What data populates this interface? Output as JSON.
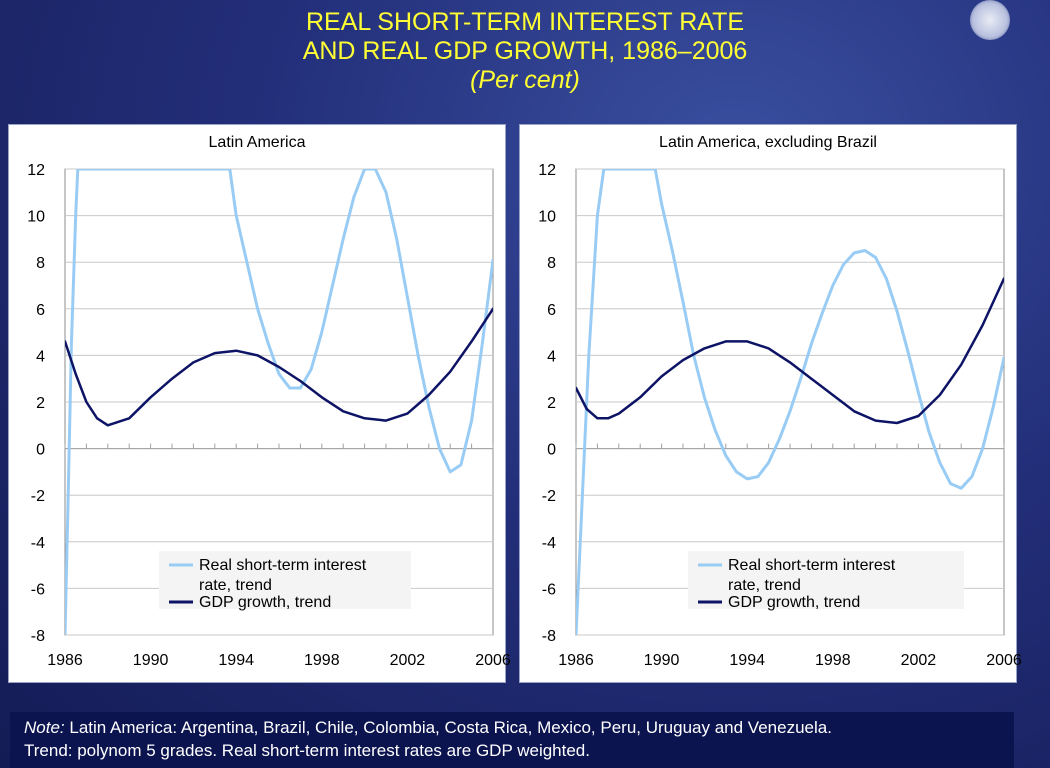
{
  "header": {
    "title_line1": "REAL SHORT-TERM INTEREST RATE",
    "title_line2": "AND REAL GDP GROWTH, 1986–2006",
    "subtitle": "(Per cent)"
  },
  "note": {
    "label": "Note:",
    "line1": "Latin America: Argentina, Brazil, Chile, Colombia, Costa Rica, Mexico, Peru, Uruguay and Venezuela.",
    "line2": "Trend: polynom 5 grades. Real short-term interest rates are GDP weighted."
  },
  "colors": {
    "interest_rate": "#99ccf5",
    "gdp_growth": "#0d1466",
    "title": "#ffff33"
  },
  "chart_data": [
    {
      "type": "line",
      "title": "Latin America",
      "xlabel": "",
      "ylabel": "",
      "ylim": [
        -8,
        12
      ],
      "xlim": [
        1986,
        2006
      ],
      "yticks": [
        "12",
        "10",
        "8",
        "6",
        "4",
        "2",
        "0",
        "-2",
        "-4",
        "-6",
        "-8"
      ],
      "xticks": [
        "1986",
        "1990",
        "1994",
        "1998",
        "2002",
        "2006"
      ],
      "legend": "bottom-center",
      "series": [
        {
          "name": "Real short-term interest rate, trend",
          "color": "#99ccf5",
          "x": [
            1986,
            1986.15,
            1986.3,
            1986.5,
            1986.6,
            1993.7,
            1994.0,
            1994.5,
            1995.0,
            1995.5,
            1996.0,
            1996.5,
            1997.0,
            1997.5,
            1998.0,
            1998.5,
            1999.0,
            1999.5,
            2000.0,
            2000.5,
            2001.0,
            2001.5,
            2002.0,
            2002.5,
            2003.0,
            2003.5,
            2004.0,
            2004.5,
            2005.0,
            2005.5,
            2006.0
          ],
          "values": [
            -8,
            -2,
            4.5,
            10,
            12,
            12,
            10,
            8,
            6,
            4.5,
            3.2,
            2.6,
            2.6,
            3.4,
            5.0,
            7.0,
            9.0,
            10.8,
            12.0,
            12.0,
            11.0,
            9.0,
            6.5,
            4.0,
            1.8,
            0,
            -1.0,
            -0.7,
            1.2,
            4.5,
            8.1
          ]
        },
        {
          "name": "GDP growth, trend",
          "color": "#0d1466",
          "x": [
            1986,
            1986.5,
            1987,
            1987.5,
            1988,
            1989,
            1990,
            1991,
            1992,
            1993,
            1994,
            1995,
            1996,
            1997,
            1998,
            1999,
            2000,
            2001,
            2002,
            2003,
            2004,
            2005,
            2006
          ],
          "values": [
            4.6,
            3.2,
            2.0,
            1.3,
            1.0,
            1.3,
            2.2,
            3.0,
            3.7,
            4.1,
            4.2,
            4.0,
            3.5,
            2.9,
            2.2,
            1.6,
            1.3,
            1.2,
            1.5,
            2.3,
            3.3,
            4.6,
            6.0
          ]
        }
      ]
    },
    {
      "type": "line",
      "title": "Latin America, excluding Brazil",
      "xlabel": "",
      "ylabel": "",
      "ylim": [
        -8,
        12
      ],
      "xlim": [
        1986,
        2006
      ],
      "yticks": [
        "12",
        "10",
        "8",
        "6",
        "4",
        "2",
        "0",
        "-2",
        "-4",
        "-6",
        "-8"
      ],
      "xticks": [
        "1986",
        "1990",
        "1994",
        "1998",
        "2002",
        "2006"
      ],
      "legend": "bottom-center",
      "series": [
        {
          "name": "Real short-term interest rate, trend",
          "color": "#99ccf5",
          "x": [
            1986,
            1986.3,
            1986.6,
            1987.0,
            1987.3,
            1989.7,
            1990.0,
            1990.5,
            1991.0,
            1991.5,
            1992.0,
            1992.5,
            1993.0,
            1993.5,
            1994.0,
            1994.5,
            1995.0,
            1995.5,
            1996.0,
            1996.5,
            1997.0,
            1997.5,
            1998.0,
            1998.5,
            1999.0,
            1999.5,
            2000.0,
            2000.5,
            2001.0,
            2001.5,
            2002.0,
            2002.5,
            2003.0,
            2003.5,
            2004.0,
            2004.5,
            2005.0,
            2005.5,
            2006.0
          ],
          "values": [
            -8,
            -2,
            4.0,
            10,
            12,
            12,
            10.5,
            8.5,
            6.3,
            4.0,
            2.2,
            0.8,
            -0.3,
            -1.0,
            -1.3,
            -1.2,
            -0.6,
            0.4,
            1.6,
            3.0,
            4.5,
            5.8,
            7.0,
            7.9,
            8.4,
            8.5,
            8.2,
            7.3,
            5.9,
            4.2,
            2.4,
            0.7,
            -0.6,
            -1.5,
            -1.7,
            -1.2,
            0.0,
            1.8,
            3.9
          ]
        },
        {
          "name": "GDP growth, trend",
          "color": "#0d1466",
          "x": [
            1986,
            1986.5,
            1987,
            1987.5,
            1988,
            1989,
            1990,
            1991,
            1992,
            1993,
            1994,
            1995,
            1996,
            1997,
            1998,
            1999,
            2000,
            2001,
            2002,
            2003,
            2004,
            2005,
            2006
          ],
          "values": [
            2.6,
            1.7,
            1.3,
            1.3,
            1.5,
            2.2,
            3.1,
            3.8,
            4.3,
            4.6,
            4.6,
            4.3,
            3.7,
            3.0,
            2.3,
            1.6,
            1.2,
            1.1,
            1.4,
            2.3,
            3.6,
            5.3,
            7.3
          ]
        }
      ]
    }
  ]
}
